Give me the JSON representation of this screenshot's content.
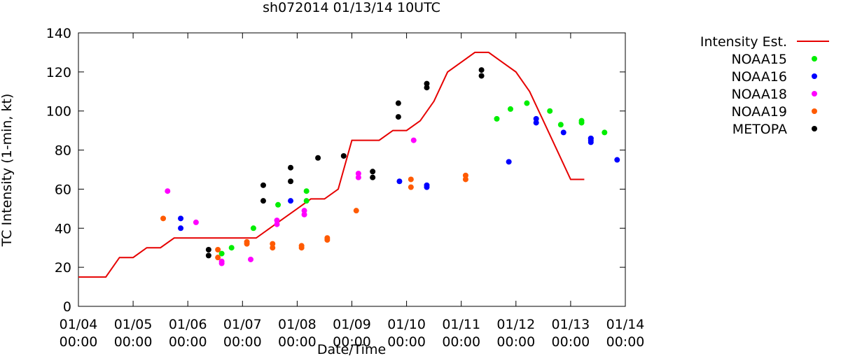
{
  "chart_data": {
    "type": "scatter",
    "title": "sh072014 01/13/14 10UTC",
    "xlabel": "Date/Time",
    "ylabel": "TC Intensity (1-min, kt)",
    "xlim": [
      0,
      10
    ],
    "ylim": [
      0,
      140
    ],
    "y_ticks": [
      0,
      20,
      40,
      60,
      80,
      100,
      120,
      140
    ],
    "x_ticks": [
      {
        "x": 0,
        "line1": "01/04",
        "line2": "00:00"
      },
      {
        "x": 1,
        "line1": "01/05",
        "line2": "00:00"
      },
      {
        "x": 2,
        "line1": "01/06",
        "line2": "00:00"
      },
      {
        "x": 3,
        "line1": "01/07",
        "line2": "00:00"
      },
      {
        "x": 4,
        "line1": "01/08",
        "line2": "00:00"
      },
      {
        "x": 5,
        "line1": "01/09",
        "line2": "00:00"
      },
      {
        "x": 6,
        "line1": "01/10",
        "line2": "00:00"
      },
      {
        "x": 7,
        "line1": "01/11",
        "line2": "00:00"
      },
      {
        "x": 8,
        "line1": "01/12",
        "line2": "00:00"
      },
      {
        "x": 9,
        "line1": "01/13",
        "line2": "00:00"
      },
      {
        "x": 10,
        "line1": "01/14",
        "line2": "00:00"
      }
    ],
    "line_series": {
      "name": "Intensity Est.",
      "color": "#e60000",
      "points": [
        [
          0,
          15
        ],
        [
          0.5,
          15
        ],
        [
          0.75,
          25
        ],
        [
          1.0,
          25
        ],
        [
          1.25,
          30
        ],
        [
          1.5,
          30
        ],
        [
          1.75,
          35
        ],
        [
          3.25,
          35
        ],
        [
          3.5,
          40
        ],
        [
          3.75,
          45
        ],
        [
          4.0,
          50
        ],
        [
          4.25,
          55
        ],
        [
          4.5,
          55
        ],
        [
          4.75,
          60
        ],
        [
          5.0,
          85
        ],
        [
          5.5,
          85
        ],
        [
          5.75,
          90
        ],
        [
          6.0,
          90
        ],
        [
          6.25,
          95
        ],
        [
          6.5,
          105
        ],
        [
          6.75,
          120
        ],
        [
          7.0,
          125
        ],
        [
          7.25,
          130
        ],
        [
          7.5,
          130
        ],
        [
          7.75,
          125
        ],
        [
          8.0,
          120
        ],
        [
          8.25,
          110
        ],
        [
          8.5,
          95
        ],
        [
          8.75,
          80
        ],
        [
          9.0,
          65
        ],
        [
          9.25,
          65
        ]
      ]
    },
    "series": [
      {
        "name": "NOAA15",
        "color": "#00ee00",
        "points": [
          [
            2.62,
            27
          ],
          [
            2.8,
            30
          ],
          [
            3.2,
            40
          ],
          [
            3.65,
            52
          ],
          [
            4.17,
            59
          ],
          [
            4.17,
            54
          ],
          [
            7.65,
            96
          ],
          [
            7.9,
            101
          ],
          [
            8.2,
            104
          ],
          [
            8.62,
            100
          ],
          [
            8.82,
            93
          ],
          [
            9.2,
            95
          ],
          [
            9.2,
            94
          ],
          [
            9.62,
            89
          ]
        ]
      },
      {
        "name": "NOAA16",
        "color": "#0000ff",
        "points": [
          [
            1.87,
            45
          ],
          [
            1.87,
            40
          ],
          [
            3.88,
            54
          ],
          [
            5.87,
            64
          ],
          [
            6.37,
            62
          ],
          [
            6.37,
            61
          ],
          [
            7.87,
            74
          ],
          [
            8.37,
            96
          ],
          [
            8.37,
            94
          ],
          [
            8.87,
            89
          ],
          [
            9.37,
            86
          ],
          [
            9.37,
            86
          ],
          [
            9.37,
            85
          ],
          [
            9.37,
            84
          ],
          [
            9.85,
            75
          ]
        ]
      },
      {
        "name": "NOAA18",
        "color": "#ff00ff",
        "points": [
          [
            1.63,
            59
          ],
          [
            2.15,
            43
          ],
          [
            2.62,
            23
          ],
          [
            2.62,
            22
          ],
          [
            3.15,
            24
          ],
          [
            3.63,
            44
          ],
          [
            3.63,
            42
          ],
          [
            4.13,
            49
          ],
          [
            4.13,
            47
          ],
          [
            5.12,
            68
          ],
          [
            5.12,
            66
          ],
          [
            6.13,
            85
          ]
        ]
      },
      {
        "name": "NOAA19",
        "color": "#ff5a00",
        "points": [
          [
            1.55,
            45
          ],
          [
            2.55,
            29
          ],
          [
            2.55,
            25
          ],
          [
            3.08,
            33
          ],
          [
            3.08,
            32
          ],
          [
            3.55,
            32
          ],
          [
            3.55,
            30
          ],
          [
            4.08,
            31
          ],
          [
            4.08,
            30
          ],
          [
            4.55,
            35
          ],
          [
            4.55,
            34
          ],
          [
            5.08,
            49
          ],
          [
            6.08,
            65
          ],
          [
            6.08,
            61
          ],
          [
            7.08,
            67
          ],
          [
            7.08,
            65
          ]
        ]
      },
      {
        "name": "METOPA",
        "color": "#000000",
        "points": [
          [
            2.38,
            29
          ],
          [
            2.38,
            26
          ],
          [
            3.38,
            62
          ],
          [
            3.38,
            54
          ],
          [
            3.88,
            71
          ],
          [
            3.88,
            64
          ],
          [
            4.38,
            76
          ],
          [
            4.85,
            77
          ],
          [
            5.38,
            69
          ],
          [
            5.38,
            66
          ],
          [
            5.85,
            104
          ],
          [
            5.85,
            97
          ],
          [
            6.37,
            114
          ],
          [
            6.37,
            112
          ],
          [
            7.37,
            121
          ],
          [
            7.37,
            118
          ]
        ]
      }
    ],
    "legend": {
      "placement": "top-right outside plot",
      "entries": [
        "Intensity Est.",
        "NOAA15",
        "NOAA16",
        "NOAA18",
        "NOAA19",
        "METOPA"
      ]
    },
    "grid": false
  }
}
